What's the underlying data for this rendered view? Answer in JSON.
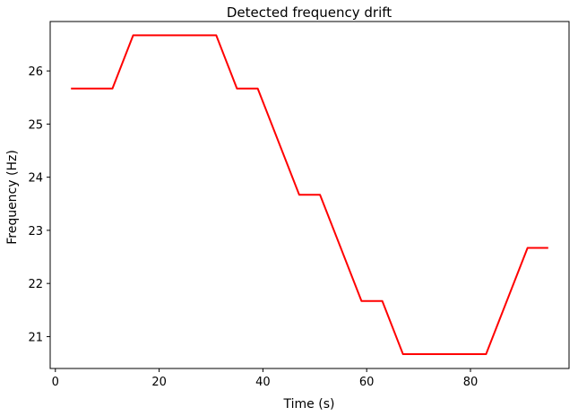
{
  "chart_data": {
    "type": "line",
    "title": "Detected frequency drift",
    "xlabel": "Time (s)",
    "ylabel": "Frequency (Hz)",
    "xlim": [
      -1,
      99
    ],
    "ylim": [
      20.4,
      26.93
    ],
    "xticks": [
      0,
      20,
      40,
      60,
      80
    ],
    "yticks": [
      21,
      22,
      23,
      24,
      25,
      26
    ],
    "grid": false,
    "legend": "none",
    "series": [
      {
        "color": "#ff0000",
        "x": [
          3,
          11,
          15,
          31,
          35,
          39,
          47,
          51,
          59,
          63,
          67,
          83,
          91,
          95
        ],
        "y": [
          25.67,
          25.67,
          26.67,
          26.67,
          25.67,
          25.67,
          23.67,
          23.67,
          21.67,
          21.67,
          20.67,
          20.67,
          22.67,
          22.67
        ]
      }
    ]
  }
}
